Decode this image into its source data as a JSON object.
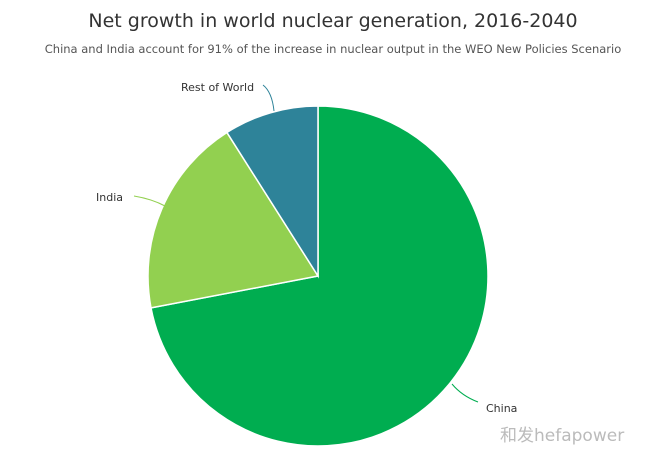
{
  "chart_data": {
    "type": "pie",
    "title": "Net growth in world nuclear generation, 2016-2040",
    "subtitle": "China and India account for 91% of the increase in nuclear output in the WEO New Policies Scenario",
    "slices": [
      {
        "label": "China",
        "value": 72,
        "color": "#00ad50"
      },
      {
        "label": "India",
        "value": 19,
        "color": "#92d050"
      },
      {
        "label": "Rest of World",
        "value": 9,
        "color": "#2e8399"
      }
    ],
    "start_angle": "top",
    "direction": "clockwise",
    "legend": "none"
  },
  "watermark": "和发hefapower"
}
